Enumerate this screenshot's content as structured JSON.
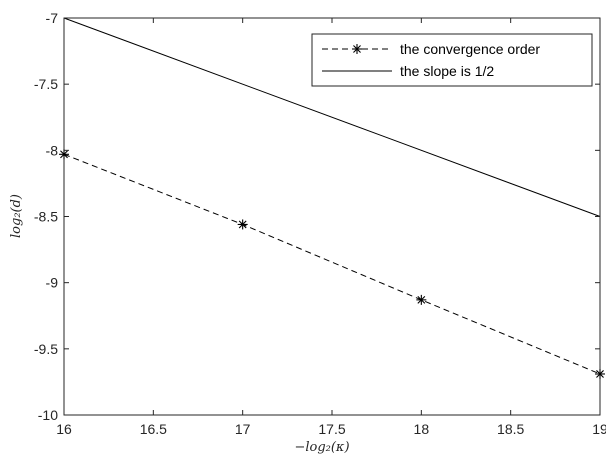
{
  "chart_data": {
    "type": "line",
    "xlabel": "−log₂(κ)",
    "ylabel": "log₂(d)",
    "xlim": [
      16,
      19
    ],
    "ylim": [
      -10,
      -7
    ],
    "x_ticks": [
      "16",
      "16.5",
      "17",
      "17.5",
      "18",
      "18.5",
      "19"
    ],
    "y_ticks": [
      "-7",
      "-7.5",
      "-8",
      "-8.5",
      "-9",
      "-9.5",
      "-10"
    ],
    "x_tick_values": [
      16,
      16.5,
      17,
      17.5,
      18,
      18.5,
      19
    ],
    "y_tick_values": [
      -7,
      -7.5,
      -8,
      -8.5,
      -9,
      -9.5,
      -10
    ],
    "grid": false,
    "legend_position": "top-right",
    "series": [
      {
        "name": "the convergence order",
        "style": "dashed",
        "marker": "asterisk",
        "color": "#000000",
        "x": [
          16,
          17,
          18,
          19
        ],
        "y": [
          -8.03,
          -8.56,
          -9.13,
          -9.69
        ]
      },
      {
        "name": "the slope is 1/2",
        "style": "solid",
        "marker": "none",
        "color": "#000000",
        "x": [
          16,
          19
        ],
        "y": [
          -7,
          -8.5
        ]
      }
    ]
  }
}
